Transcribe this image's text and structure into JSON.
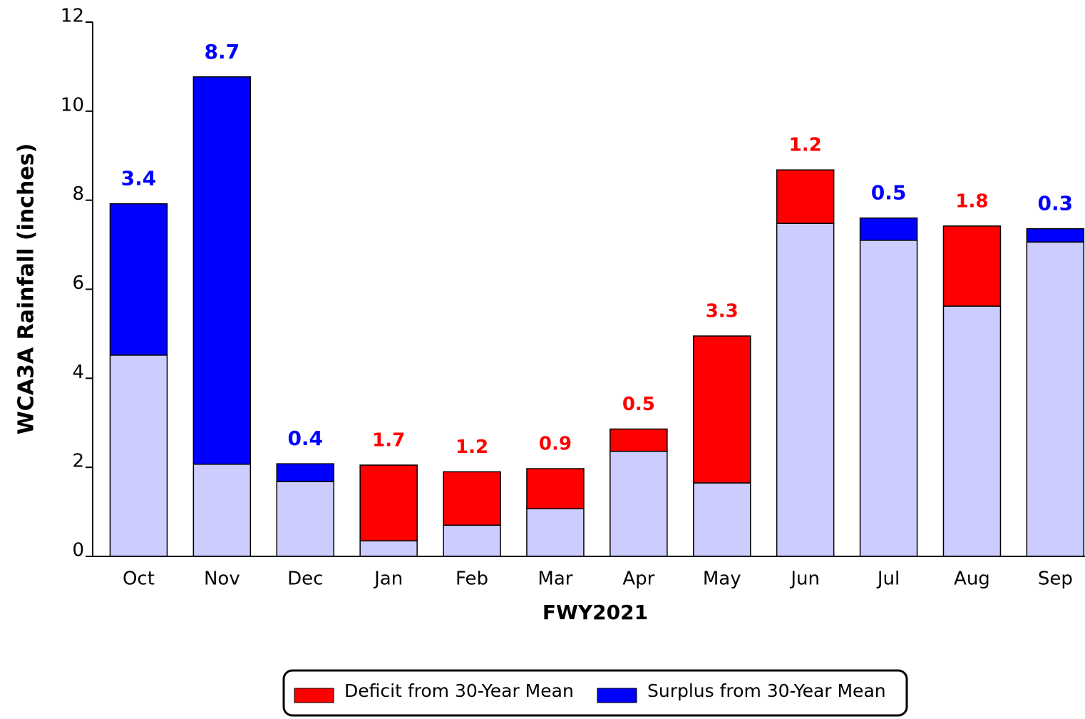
{
  "chart_data": {
    "type": "stacked-bar",
    "xlabel": "FWY2021",
    "ylabel": "WCA3A Rainfall (inches)",
    "categories": [
      "Oct",
      "Nov",
      "Dec",
      "Jan",
      "Feb",
      "Mar",
      "Apr",
      "May",
      "Jun",
      "Jul",
      "Aug",
      "Sep"
    ],
    "series": [
      {
        "color": "#ccccff",
        "values": [
          4.52,
          2.07,
          1.68,
          0.35,
          0.7,
          1.07,
          2.36,
          1.65,
          7.48,
          7.1,
          5.62,
          7.06
        ]
      },
      {
        "name": "Deficit from 30-Year Mean",
        "color": "#ff0000",
        "values": [
          null,
          null,
          null,
          1.7,
          1.2,
          0.9,
          0.5,
          3.3,
          1.2,
          null,
          1.8,
          null
        ]
      },
      {
        "name": "Surplus from 30-Year Mean",
        "color": "#0000ff",
        "values": [
          3.4,
          8.7,
          0.4,
          null,
          null,
          null,
          null,
          null,
          null,
          0.5,
          null,
          0.3
        ]
      }
    ],
    "ylim": [
      0,
      12
    ],
    "yticks": [
      0,
      2,
      4,
      6,
      8,
      10,
      12
    ],
    "legend": "bottom"
  }
}
